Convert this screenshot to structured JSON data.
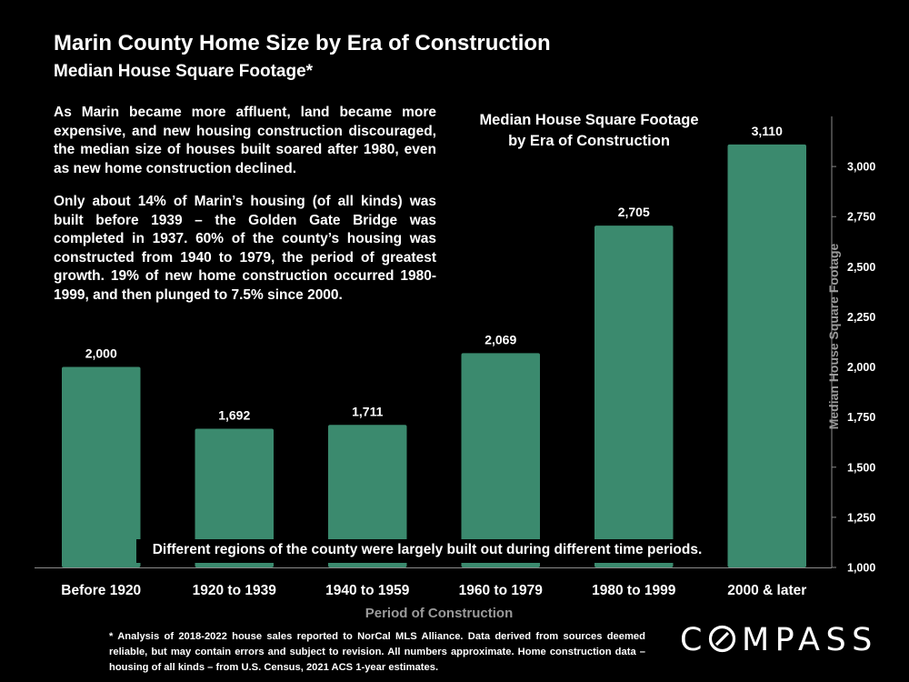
{
  "slide": {
    "title": "Marin County Home Size by Era of Construction",
    "subtitle": "Median House Square Footage*",
    "narrative": [
      "As Marin became more affluent, land became more expensive, and new housing construction discouraged, the median size of houses built soared after 1980, even as new home construction declined.",
      "Only about 14% of Marin’s housing (of all kinds) was built before 1939 – the Golden Gate Bridge was completed in 1937. 60% of the county’s housing was constructed from 1940 to 1979, the period of greatest growth.  19% of new home construction occurred 1980-1999, and then plunged to 7.5% since 2000."
    ],
    "regions_note": "Different regions of the county were largely built out during different time periods.",
    "footnote": "* Analysis of 2018-2022 house sales reported to NorCal MLS Alliance.  Data derived from sources deemed reliable, but may contain errors and subject to revision. All numbers approximate. Home construction data – housing of all kinds – from U.S. Census, 2021 ACS 1-year estimates.",
    "logo": {
      "before": "C",
      "after": "MPASS",
      "full": "COMPASS"
    }
  },
  "chart_data": {
    "type": "bar",
    "title_lines": [
      "Median House Square Footage",
      "by Era of Construction"
    ],
    "categories": [
      "Before 1920",
      "1920 to 1939",
      "1940 to 1959",
      "1960 to 1979",
      "1980 to 1999",
      "2000 & later"
    ],
    "values": [
      2000,
      1692,
      1711,
      2069,
      2705,
      3110
    ],
    "value_labels": [
      "2,000",
      "1,692",
      "1,711",
      "2,069",
      "2,705",
      "3,110"
    ],
    "xlabel": "Period of Construction",
    "ylabel": "Median House Square Footage",
    "ylim": [
      1000,
      3250
    ],
    "yticks": [
      1000,
      1250,
      1500,
      1750,
      2000,
      2250,
      2500,
      2750,
      3000
    ],
    "ytick_labels": [
      "1,000",
      "1,250",
      "1,500",
      "1,750",
      "2,000",
      "2,250",
      "2,500",
      "2,750",
      "3,000"
    ],
    "y_axis_side": "right",
    "grid": false,
    "bar_color": "#3b8a6e",
    "axis_color": "#8a8a8a"
  }
}
